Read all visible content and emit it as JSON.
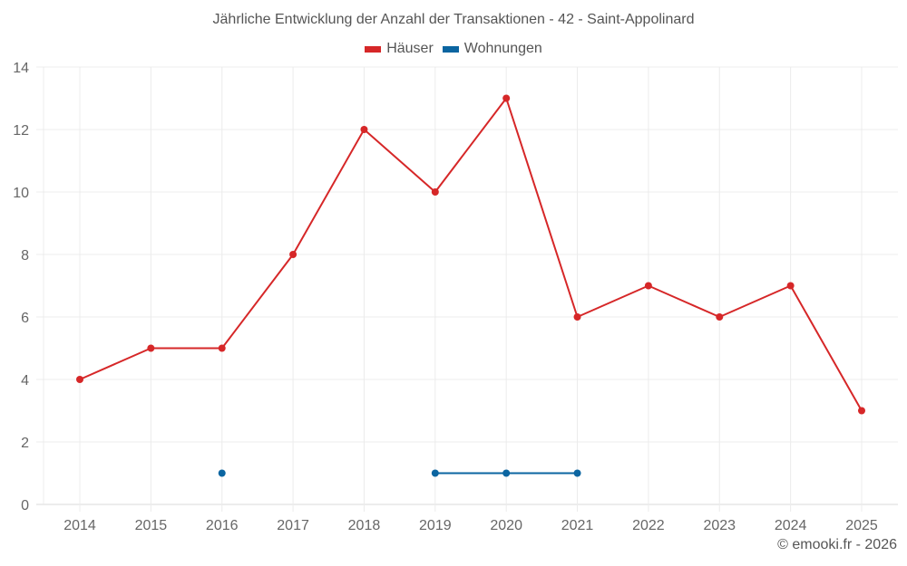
{
  "title": "Jährliche Entwicklung der Anzahl der Transaktionen - 42 - Saint-Appolinard",
  "legend": [
    {
      "label": "Häuser",
      "color": "#d62728"
    },
    {
      "label": "Wohnungen",
      "color": "#0b65a1"
    }
  ],
  "credit": "© emooki.fr - 2026",
  "chart_data": {
    "type": "line",
    "title": "Jährliche Entwicklung der Anzahl der Transaktionen - 42 - Saint-Appolinard",
    "xlabel": "",
    "ylabel": "",
    "categories": [
      "2014",
      "2015",
      "2016",
      "2017",
      "2018",
      "2019",
      "2020",
      "2021",
      "2022",
      "2023",
      "2024",
      "2025"
    ],
    "series": [
      {
        "name": "Häuser",
        "color": "#d62728",
        "values": [
          4,
          5,
          5,
          8,
          12,
          10,
          13,
          6,
          7,
          6,
          7,
          3
        ]
      },
      {
        "name": "Wohnungen",
        "color": "#0b65a1",
        "values": [
          null,
          null,
          1,
          null,
          null,
          1,
          1,
          1,
          null,
          null,
          null,
          null
        ]
      }
    ],
    "yticks": [
      0,
      2,
      4,
      6,
      8,
      10,
      12,
      14
    ],
    "ylim": [
      0,
      14
    ],
    "grid": true,
    "legend_position": "top"
  }
}
